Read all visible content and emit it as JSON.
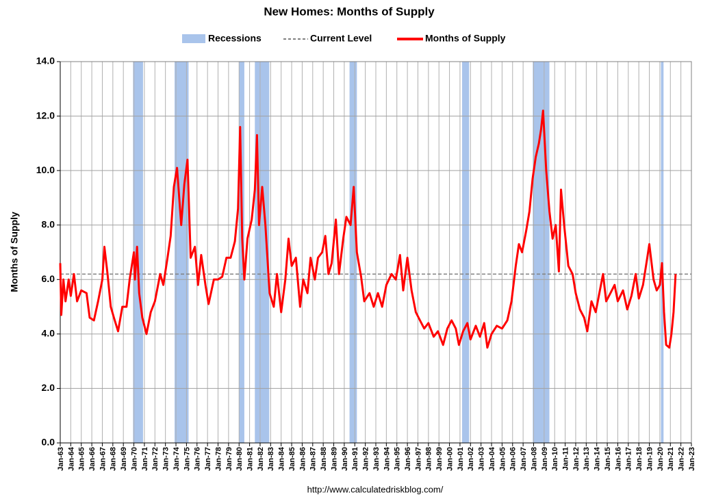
{
  "chart_data": {
    "type": "line",
    "title": "New Homes: Months of Supply",
    "y_label": "Months of Supply",
    "source": "http://www.calculatedriskblog.com/",
    "grid": true,
    "xlim": [
      1963,
      2023
    ],
    "ylim": [
      0,
      14
    ],
    "yticks": [
      {
        "value": 0,
        "label": "0.0"
      },
      {
        "value": 2,
        "label": "2.0"
      },
      {
        "value": 4,
        "label": "4.0"
      },
      {
        "value": 6,
        "label": "6.0"
      },
      {
        "value": 8,
        "label": "8.0"
      },
      {
        "value": 10,
        "label": "10.0"
      },
      {
        "value": 12,
        "label": "12.0"
      },
      {
        "value": 14,
        "label": "14.0"
      }
    ],
    "xticks": [
      {
        "value": 1963,
        "label": "Jan-63"
      },
      {
        "value": 1964,
        "label": "Jan-64"
      },
      {
        "value": 1965,
        "label": "Jan-65"
      },
      {
        "value": 1966,
        "label": "Jan-66"
      },
      {
        "value": 1967,
        "label": "Jan-67"
      },
      {
        "value": 1968,
        "label": "Jan-68"
      },
      {
        "value": 1969,
        "label": "Jan-69"
      },
      {
        "value": 1970,
        "label": "Jan-70"
      },
      {
        "value": 1971,
        "label": "Jan-71"
      },
      {
        "value": 1972,
        "label": "Jan-72"
      },
      {
        "value": 1973,
        "label": "Jan-73"
      },
      {
        "value": 1974,
        "label": "Jan-74"
      },
      {
        "value": 1975,
        "label": "Jan-75"
      },
      {
        "value": 1976,
        "label": "Jan-76"
      },
      {
        "value": 1977,
        "label": "Jan-77"
      },
      {
        "value": 1978,
        "label": "Jan-78"
      },
      {
        "value": 1979,
        "label": "Jan-79"
      },
      {
        "value": 1980,
        "label": "Jan-80"
      },
      {
        "value": 1981,
        "label": "Jan-81"
      },
      {
        "value": 1982,
        "label": "Jan-82"
      },
      {
        "value": 1983,
        "label": "Jan-83"
      },
      {
        "value": 1984,
        "label": "Jan-84"
      },
      {
        "value": 1985,
        "label": "Jan-85"
      },
      {
        "value": 1986,
        "label": "Jan-86"
      },
      {
        "value": 1987,
        "label": "Jan-87"
      },
      {
        "value": 1988,
        "label": "Jan-88"
      },
      {
        "value": 1989,
        "label": "Jan-89"
      },
      {
        "value": 1990,
        "label": "Jan-90"
      },
      {
        "value": 1991,
        "label": "Jan-91"
      },
      {
        "value": 1992,
        "label": "Jan-92"
      },
      {
        "value": 1993,
        "label": "Jan-93"
      },
      {
        "value": 1994,
        "label": "Jan-94"
      },
      {
        "value": 1995,
        "label": "Jan-95"
      },
      {
        "value": 1996,
        "label": "Jan-96"
      },
      {
        "value": 1997,
        "label": "Jan-97"
      },
      {
        "value": 1998,
        "label": "Jan-98"
      },
      {
        "value": 1999,
        "label": "Jan-99"
      },
      {
        "value": 2000,
        "label": "Jan-00"
      },
      {
        "value": 2001,
        "label": "Jan-01"
      },
      {
        "value": 2002,
        "label": "Jan-02"
      },
      {
        "value": 2003,
        "label": "Jan-03"
      },
      {
        "value": 2004,
        "label": "Jan-04"
      },
      {
        "value": 2005,
        "label": "Jan-05"
      },
      {
        "value": 2006,
        "label": "Jan-06"
      },
      {
        "value": 2007,
        "label": "Jan-07"
      },
      {
        "value": 2008,
        "label": "Jan-08"
      },
      {
        "value": 2009,
        "label": "Jan-09"
      },
      {
        "value": 2010,
        "label": "Jan-10"
      },
      {
        "value": 2011,
        "label": "Jan-11"
      },
      {
        "value": 2012,
        "label": "Jan-12"
      },
      {
        "value": 2013,
        "label": "Jan-13"
      },
      {
        "value": 2014,
        "label": "Jan-14"
      },
      {
        "value": 2015,
        "label": "Jan-15"
      },
      {
        "value": 2016,
        "label": "Jan-16"
      },
      {
        "value": 2017,
        "label": "Jan-17"
      },
      {
        "value": 2018,
        "label": "Jan-18"
      },
      {
        "value": 2019,
        "label": "Jan-19"
      },
      {
        "value": 2020,
        "label": "Jan-20"
      },
      {
        "value": 2021,
        "label": "Jan-21"
      },
      {
        "value": 2022,
        "label": "Jan-22"
      },
      {
        "value": 2023,
        "label": "Jan-23"
      }
    ],
    "recessions": {
      "name": "Recessions",
      "color": "#a9c4eb",
      "periods": [
        [
          1969.92,
          1970.87
        ],
        [
          1973.87,
          1975.2
        ],
        [
          1980.0,
          1980.5
        ],
        [
          1981.5,
          1982.87
        ],
        [
          1990.5,
          1991.2
        ],
        [
          2001.2,
          2001.87
        ],
        [
          2007.92,
          2009.5
        ],
        [
          2020.1,
          2020.35
        ]
      ]
    },
    "current_level": {
      "name": "Current Level",
      "value": 6.2,
      "color": "#808080"
    },
    "series": [
      {
        "name": "Months of Supply",
        "color": "#ff0000",
        "x": [
          1963.0,
          1963.1,
          1963.3,
          1963.5,
          1963.8,
          1964.0,
          1964.3,
          1964.6,
          1965.0,
          1965.5,
          1965.8,
          1966.2,
          1966.6,
          1967.0,
          1967.2,
          1967.5,
          1967.8,
          1968.1,
          1968.5,
          1968.9,
          1969.3,
          1969.6,
          1970.0,
          1970.1,
          1970.3,
          1970.5,
          1970.8,
          1971.2,
          1971.6,
          1972.0,
          1972.5,
          1972.8,
          1973.2,
          1973.5,
          1973.8,
          1974.1,
          1974.5,
          1974.8,
          1975.1,
          1975.4,
          1975.8,
          1976.1,
          1976.4,
          1976.8,
          1977.1,
          1977.6,
          1978.0,
          1978.4,
          1978.8,
          1979.2,
          1979.6,
          1979.9,
          1980.1,
          1980.3,
          1980.5,
          1980.8,
          1981.2,
          1981.5,
          1981.7,
          1981.9,
          1982.2,
          1982.5,
          1982.9,
          1983.3,
          1983.6,
          1984.0,
          1984.4,
          1984.7,
          1985.0,
          1985.4,
          1985.8,
          1986.1,
          1986.5,
          1986.8,
          1987.2,
          1987.5,
          1987.9,
          1988.2,
          1988.5,
          1988.8,
          1989.2,
          1989.5,
          1989.9,
          1990.2,
          1990.6,
          1990.9,
          1991.2,
          1991.6,
          1991.9,
          1992.4,
          1992.8,
          1993.2,
          1993.6,
          1994.0,
          1994.5,
          1994.9,
          1995.3,
          1995.6,
          1996.0,
          1996.4,
          1996.8,
          1997.2,
          1997.6,
          1998.0,
          1998.5,
          1998.9,
          1999.4,
          1999.8,
          2000.2,
          2000.6,
          2000.9,
          2001.3,
          2001.7,
          2002.0,
          2002.5,
          2002.9,
          2003.3,
          2003.6,
          2004.0,
          2004.5,
          2005.0,
          2005.5,
          2005.9,
          2006.3,
          2006.6,
          2006.9,
          2007.3,
          2007.6,
          2007.9,
          2008.2,
          2008.5,
          2008.7,
          2008.9,
          2009.2,
          2009.5,
          2009.8,
          2010.1,
          2010.4,
          2010.6,
          2010.9,
          2011.3,
          2011.7,
          2012.0,
          2012.4,
          2012.8,
          2013.1,
          2013.5,
          2013.9,
          2014.3,
          2014.6,
          2014.9,
          2015.3,
          2015.7,
          2016.0,
          2016.5,
          2016.9,
          2017.3,
          2017.7,
          2018.0,
          2018.4,
          2018.8,
          2019.0,
          2019.4,
          2019.7,
          2020.0,
          2020.2,
          2020.4,
          2020.6,
          2020.9,
          2021.1,
          2021.3,
          2021.5
        ],
        "values": [
          6.6,
          4.7,
          6.0,
          5.2,
          6.0,
          5.4,
          6.2,
          5.2,
          5.6,
          5.5,
          4.6,
          4.5,
          5.2,
          6.0,
          7.2,
          6.2,
          5.0,
          4.6,
          4.1,
          5.0,
          5.0,
          6.0,
          7.0,
          6.0,
          7.2,
          5.5,
          4.6,
          4.0,
          4.8,
          5.2,
          6.2,
          5.8,
          6.8,
          7.6,
          9.4,
          10.1,
          8.0,
          9.5,
          10.4,
          6.8,
          7.2,
          5.8,
          6.9,
          5.8,
          5.1,
          6.0,
          6.0,
          6.1,
          6.8,
          6.8,
          7.4,
          8.6,
          11.6,
          7.5,
          6.0,
          7.5,
          8.2,
          9.3,
          11.3,
          8.0,
          9.4,
          8.0,
          5.5,
          5.0,
          6.2,
          4.8,
          6.0,
          7.5,
          6.5,
          6.8,
          5.0,
          6.0,
          5.5,
          6.8,
          6.0,
          6.8,
          7.0,
          7.6,
          6.2,
          6.6,
          8.2,
          6.2,
          7.5,
          8.3,
          8.0,
          9.4,
          7.0,
          6.1,
          5.2,
          5.5,
          5.0,
          5.5,
          5.0,
          5.8,
          6.2,
          6.0,
          6.9,
          5.6,
          6.8,
          5.6,
          4.8,
          4.5,
          4.2,
          4.4,
          3.9,
          4.1,
          3.6,
          4.2,
          4.5,
          4.2,
          3.6,
          4.1,
          4.4,
          3.8,
          4.3,
          3.9,
          4.4,
          3.5,
          4.0,
          4.3,
          4.2,
          4.5,
          5.2,
          6.5,
          7.3,
          7.0,
          7.8,
          8.5,
          9.7,
          10.5,
          11.0,
          11.5,
          12.2,
          10.0,
          8.5,
          7.5,
          8.0,
          6.3,
          9.3,
          8.0,
          6.5,
          6.2,
          5.5,
          4.9,
          4.6,
          4.1,
          5.2,
          4.8,
          5.6,
          6.2,
          5.2,
          5.5,
          5.8,
          5.2,
          5.6,
          4.9,
          5.4,
          6.2,
          5.3,
          5.8,
          6.8,
          7.3,
          6.0,
          5.6,
          5.8,
          6.6,
          4.8,
          3.6,
          3.5,
          4.0,
          4.8,
          6.2
        ]
      }
    ]
  }
}
